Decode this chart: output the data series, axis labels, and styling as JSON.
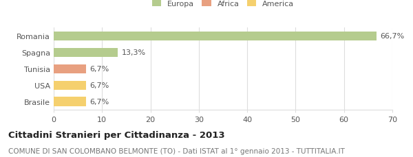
{
  "categories": [
    "Romania",
    "Spagna",
    "Tunisia",
    "USA",
    "Brasile"
  ],
  "values": [
    66.7,
    13.3,
    6.7,
    6.7,
    6.7
  ],
  "labels": [
    "66,7%",
    "13,3%",
    "6,7%",
    "6,7%",
    "6,7%"
  ],
  "bar_colors": [
    "#b5cc8e",
    "#b5cc8e",
    "#e8a080",
    "#f5d06e",
    "#f5d06e"
  ],
  "legend_items": [
    {
      "label": "Europa",
      "color": "#b5cc8e"
    },
    {
      "label": "Africa",
      "color": "#e8a080"
    },
    {
      "label": "America",
      "color": "#f5d06e"
    }
  ],
  "xlim": [
    0,
    70
  ],
  "xticks": [
    0,
    10,
    20,
    30,
    40,
    50,
    60,
    70
  ],
  "title": "Cittadini Stranieri per Cittadinanza - 2013",
  "subtitle": "COMUNE DI SAN COLOMBANO BELMONTE (TO) - Dati ISTAT al 1° gennaio 2013 - TUTTITALIA.IT",
  "title_fontsize": 9.5,
  "subtitle_fontsize": 7.5,
  "label_fontsize": 8,
  "tick_fontsize": 8,
  "background_color": "#ffffff",
  "bar_height": 0.55,
  "grid_color": "#dddddd"
}
